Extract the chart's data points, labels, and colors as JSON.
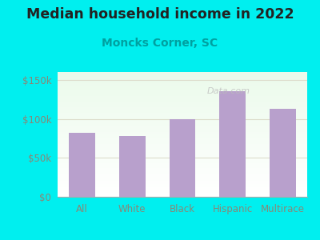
{
  "title": "Median household income in 2022",
  "subtitle": "Moncks Corner, SC",
  "categories": [
    "All",
    "White",
    "Black",
    "Hispanic",
    "Multirace"
  ],
  "values": [
    82000,
    78000,
    100000,
    135000,
    113000
  ],
  "bar_color": "#b8a0cc",
  "background_color": "#00EFEF",
  "title_color": "#222222",
  "subtitle_color": "#00a0a0",
  "tick_color": "#888877",
  "ylim": [
    0,
    160000
  ],
  "yticks": [
    0,
    50000,
    100000,
    150000
  ],
  "ytick_labels": [
    "$0",
    "$50k",
    "$100k",
    "$150k"
  ],
  "title_fontsize": 12.5,
  "subtitle_fontsize": 10,
  "tick_fontsize": 8.5,
  "watermark": "Data.com",
  "grid_color": "#ddddcc"
}
